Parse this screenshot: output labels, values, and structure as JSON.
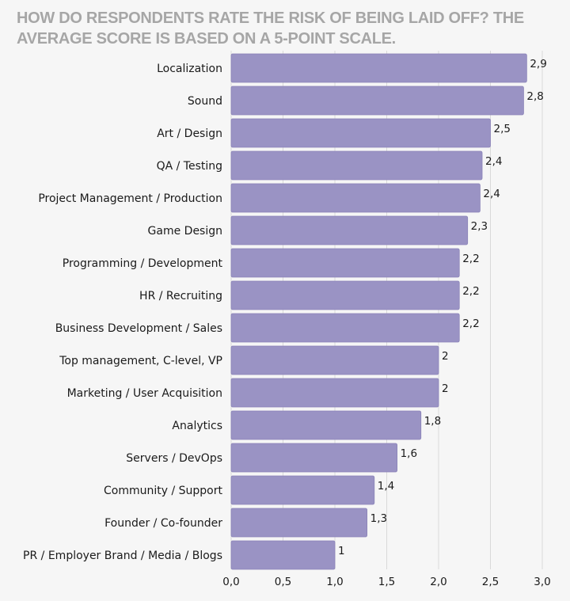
{
  "chart_data": {
    "type": "bar",
    "orientation": "horizontal",
    "title": "HOW DO RESPONDENTS RATE THE RISK OF BEING LAID OFF? THE AVERAGE SCORE IS BASED ON A 5-POINT SCALE.",
    "categories": [
      "Localization",
      "Sound",
      "Art / Design",
      "QA / Testing",
      "Project Management / Production",
      "Game Design",
      "Programming / Development",
      "HR / Recruiting",
      "Business Development / Sales",
      "Top management, C-level, VP",
      "Marketing / User Acquisition",
      "Analytics",
      "Servers / DevOps",
      "Community / Support",
      "Founder / Co-founder",
      "PR / Employer Brand / Media / Blogs"
    ],
    "values": [
      2.85,
      2.82,
      2.5,
      2.42,
      2.4,
      2.28,
      2.2,
      2.2,
      2.2,
      2.0,
      2.0,
      1.83,
      1.6,
      1.38,
      1.31,
      1.0
    ],
    "value_labels": [
      "2,9",
      "2,8",
      "2,5",
      "2,4",
      "2,4",
      "2,3",
      "2,2",
      "2,2",
      "2,2",
      "2",
      "2",
      "1,8",
      "1,6",
      "1,4",
      "1,3",
      "1"
    ],
    "xticks": [
      "0,0",
      "0,5",
      "1,0",
      "1,5",
      "2,0",
      "2,5",
      "3,0"
    ],
    "xlim": [
      0,
      3.0
    ],
    "xlabel": "",
    "ylabel": "",
    "grid": "vertical",
    "colors": {
      "bar": "#9a93c4",
      "bar_stroke": "#8a83b8",
      "grid": "#d9d9d9",
      "title": "#a6a6a6",
      "text": "#1a1a1a"
    }
  }
}
